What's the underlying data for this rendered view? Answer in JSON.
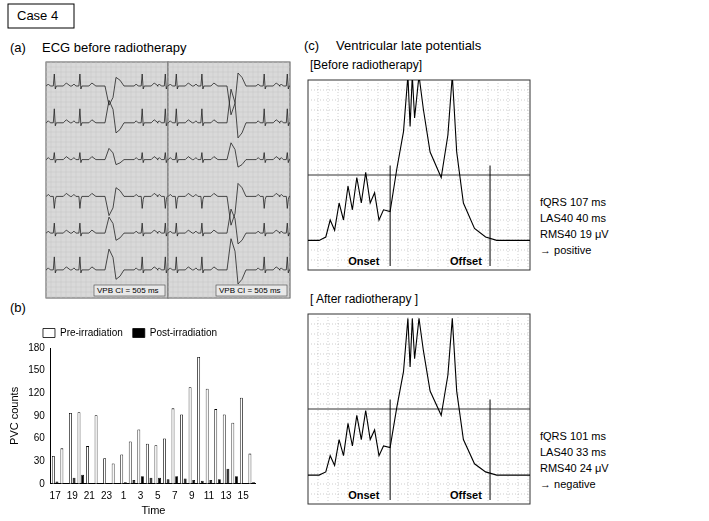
{
  "chart_data": {
    "type": "bar",
    "x_label": "Time",
    "y_label": "PVC counts",
    "categories": [
      "17",
      null,
      "19",
      null,
      "21",
      null,
      "23",
      null,
      "1",
      null,
      "3",
      null,
      "5",
      null,
      "7",
      null,
      "9",
      null,
      "11",
      null,
      "13",
      null,
      "15",
      null
    ],
    "series": [
      {
        "name": "Pre-irradiation",
        "color": "#ffffff",
        "values": [
          37,
          47,
          94,
          95,
          50,
          91,
          34,
          27,
          39,
          56,
          72,
          53,
          51,
          60,
          100,
          92,
          128,
          168,
          126,
          99,
          92,
          81,
          114,
          40
        ]
      },
      {
        "name": "Post-irradiation",
        "color": "#000000",
        "values": [
          3,
          0,
          8,
          12,
          1,
          0,
          0,
          1,
          2,
          5,
          10,
          8,
          8,
          6,
          10,
          7,
          5,
          4,
          5,
          6,
          20,
          10,
          1,
          2
        ]
      }
    ],
    "ylim": [
      0,
      180
    ],
    "yticks": [
      0,
      30,
      60,
      90,
      120,
      150,
      180
    ],
    "grid": false,
    "legend": "top"
  },
  "figure": {
    "case_label": "Case 4",
    "panel_a": {
      "label": "(a)",
      "title": "ECG before radiotherapy",
      "annotations": [
        "VPB CI = 505 ms",
        "VPB CI = 505 ms"
      ]
    },
    "panel_b": {
      "label": "(b)"
    },
    "panel_c": {
      "label": "(c)",
      "title": "Ventricular late potentials",
      "plots": [
        {
          "heading": "[Before radiotherapy]",
          "onset": "Onset",
          "offset": "Offset",
          "measures": [
            "fQRS  107 ms",
            "LAS40  40 ms",
            "RMS40  19 μV"
          ],
          "result": "→  positive"
        },
        {
          "heading": "[ After radiotherapy ]",
          "onset": "Onset",
          "offset": "Offset",
          "measures": [
            "fQRS  101 ms",
            "LAS40  33 ms",
            "RMS40  24 μV"
          ],
          "result": "→  negative"
        }
      ]
    }
  }
}
